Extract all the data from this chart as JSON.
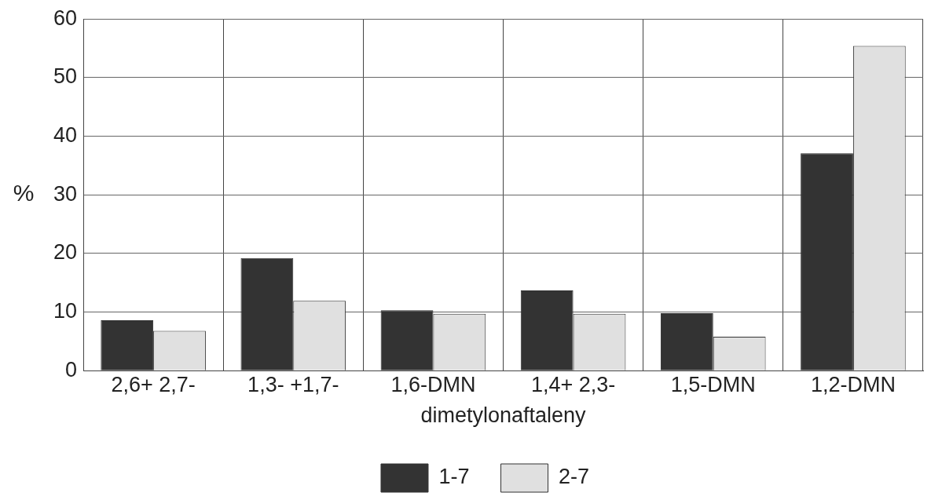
{
  "chart_data": {
    "type": "bar",
    "xlabel": "dimetylonaftaleny",
    "ylabel": "%",
    "categories": [
      "2,6+ 2,7-",
      "1,3- +1,7-",
      "1,6-DMN",
      "1,4+ 2,3-",
      "1,5-DMN",
      "1,2-DMN"
    ],
    "series": [
      {
        "name": "1-7",
        "color": "#333333",
        "values": [
          8.6,
          19.2,
          10.3,
          13.7,
          9.8,
          37.1
        ]
      },
      {
        "name": "2-7",
        "color": "#e0e0e0",
        "values": [
          6.8,
          11.9,
          9.7,
          9.7,
          5.8,
          55.4
        ]
      }
    ],
    "ylim": [
      0,
      60
    ],
    "yticks": [
      0,
      10,
      20,
      30,
      40,
      50,
      60
    ],
    "grid": true,
    "legend": "bottom"
  }
}
